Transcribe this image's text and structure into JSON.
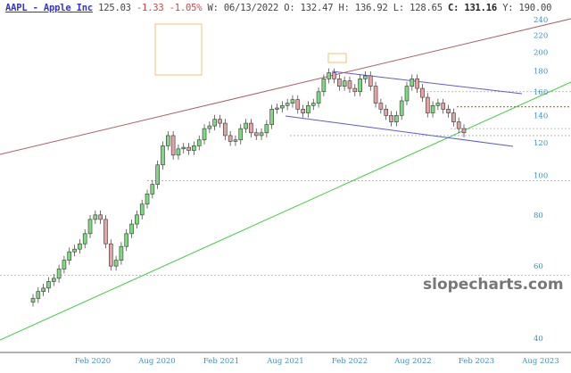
{
  "header": {
    "symbol": "AAPL - Apple Inc",
    "last": "125.03",
    "change": "-1.33",
    "change_pct": "-1.05%",
    "week": "W: 06/13/2022",
    "open": "O: 132.47",
    "high": "H: 136.92",
    "low": "L: 128.65",
    "close": "C: 131.16",
    "y": "Y: 190.00"
  },
  "watermark": "slopecharts.com",
  "chart_data": {
    "type": "candlestick",
    "scale": "log",
    "ylim": [
      40,
      240
    ],
    "yticks": [
      240,
      220,
      200,
      180,
      160,
      140,
      120,
      100,
      80,
      60,
      40
    ],
    "xticks": [
      "Feb 2020",
      "Aug 2020",
      "Feb 2021",
      "Aug 2021",
      "Feb 2022",
      "Aug 2022",
      "Feb 2023",
      "Aug 2023"
    ],
    "period": "biweekly, Aug 2019 - Jan 2023",
    "closes": [
      50,
      52,
      53,
      55,
      56,
      59,
      62,
      65,
      66,
      68,
      72,
      78,
      80,
      78,
      68,
      60,
      62,
      67,
      72,
      76,
      80,
      85,
      90,
      95,
      106,
      118,
      125,
      112,
      116,
      117,
      115,
      118,
      122,
      130,
      132,
      137,
      134,
      125,
      121,
      122,
      130,
      134,
      127,
      125,
      127,
      133,
      145,
      146,
      148,
      150,
      153,
      145,
      142,
      148,
      150,
      160,
      172,
      178,
      172,
      165,
      170,
      163,
      160,
      172,
      175,
      165,
      150,
      145,
      140,
      135,
      140,
      152,
      165,
      172,
      163,
      155,
      142,
      148,
      150,
      145,
      142,
      135,
      130,
      127
    ],
    "colors": {
      "up": "#7fd97f",
      "down": "#e7a3a3",
      "trend_upper": "#b06060",
      "trend_lower": "#44cc44",
      "channel": "#5a5ae0",
      "highlight": "#f0c070"
    },
    "horizontal_levels": [
      160,
      147,
      130,
      125,
      97,
      57
    ]
  }
}
